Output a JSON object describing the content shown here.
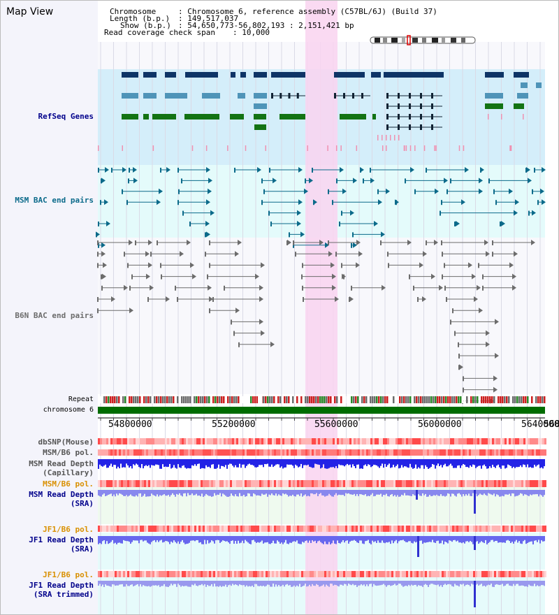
{
  "page_title": "Map View",
  "info": {
    "chromosome_key": "Chromosome",
    "chromosome_val": ": Chromosome 6, reference assembly (C57BL/6J) (Build 37)",
    "length_key": "Length (b.p.)",
    "length_val": ": 149,517,037",
    "show_key": "Show (b.p.)",
    "show_val": ": 54,650,773-56,802,193 : 2,151,421 bp",
    "span_key": "Read coverage check span",
    "span_val": ": 10,000"
  },
  "tracks": {
    "refseq": "RefSeq Genes",
    "msm_bac": "MSM BAC end pairs",
    "b6n_bac": "B6N BAC end pairs",
    "repeat": "Repeat",
    "chromosome": "chromosome 6",
    "dbsnp": "dbSNP(Mouse)",
    "msm_b6_pol_1": "MSM/B6 pol.",
    "msm_read_depth_1": "MSM Read Depth",
    "msm_read_depth_1_sub": "(Capillary)",
    "msm_b6_pol_2": "MSM/B6 pol.",
    "msm_read_depth_2": "MSM Read Depth",
    "msm_read_depth_2_sub": "(SRA)",
    "jf1_b6_pol_1": "JF1/B6 pol.",
    "jf1_read_depth_1": "JF1 Read Depth",
    "jf1_read_depth_1_sub": "(SRA)",
    "jf1_b6_pol_2": "JF1/B6 pol.",
    "jf1_read_depth_2": "JF1 Read Depth",
    "jf1_read_depth_2_sub": "(SRA trimmed)"
  },
  "axis": {
    "ticks": [
      "54800000",
      "55200000",
      "55600000",
      "56000000",
      "56400000",
      "568"
    ]
  },
  "colors": {
    "highlight": "#f9d4f0",
    "refseq_bg": "#d4eefa",
    "msm_bg": "#e4fbfb",
    "gene_navy": "#0e3466",
    "gene_steel": "#4f94b8",
    "gene_green": "#137313",
    "bac_teal": "#0b6a8a",
    "bac_gray": "#6c6c6c",
    "chromosome_green": "#006c00",
    "depth_blue": "#2b2bdc",
    "label_orange": "#d99000",
    "label_navy": "#00008b"
  }
}
